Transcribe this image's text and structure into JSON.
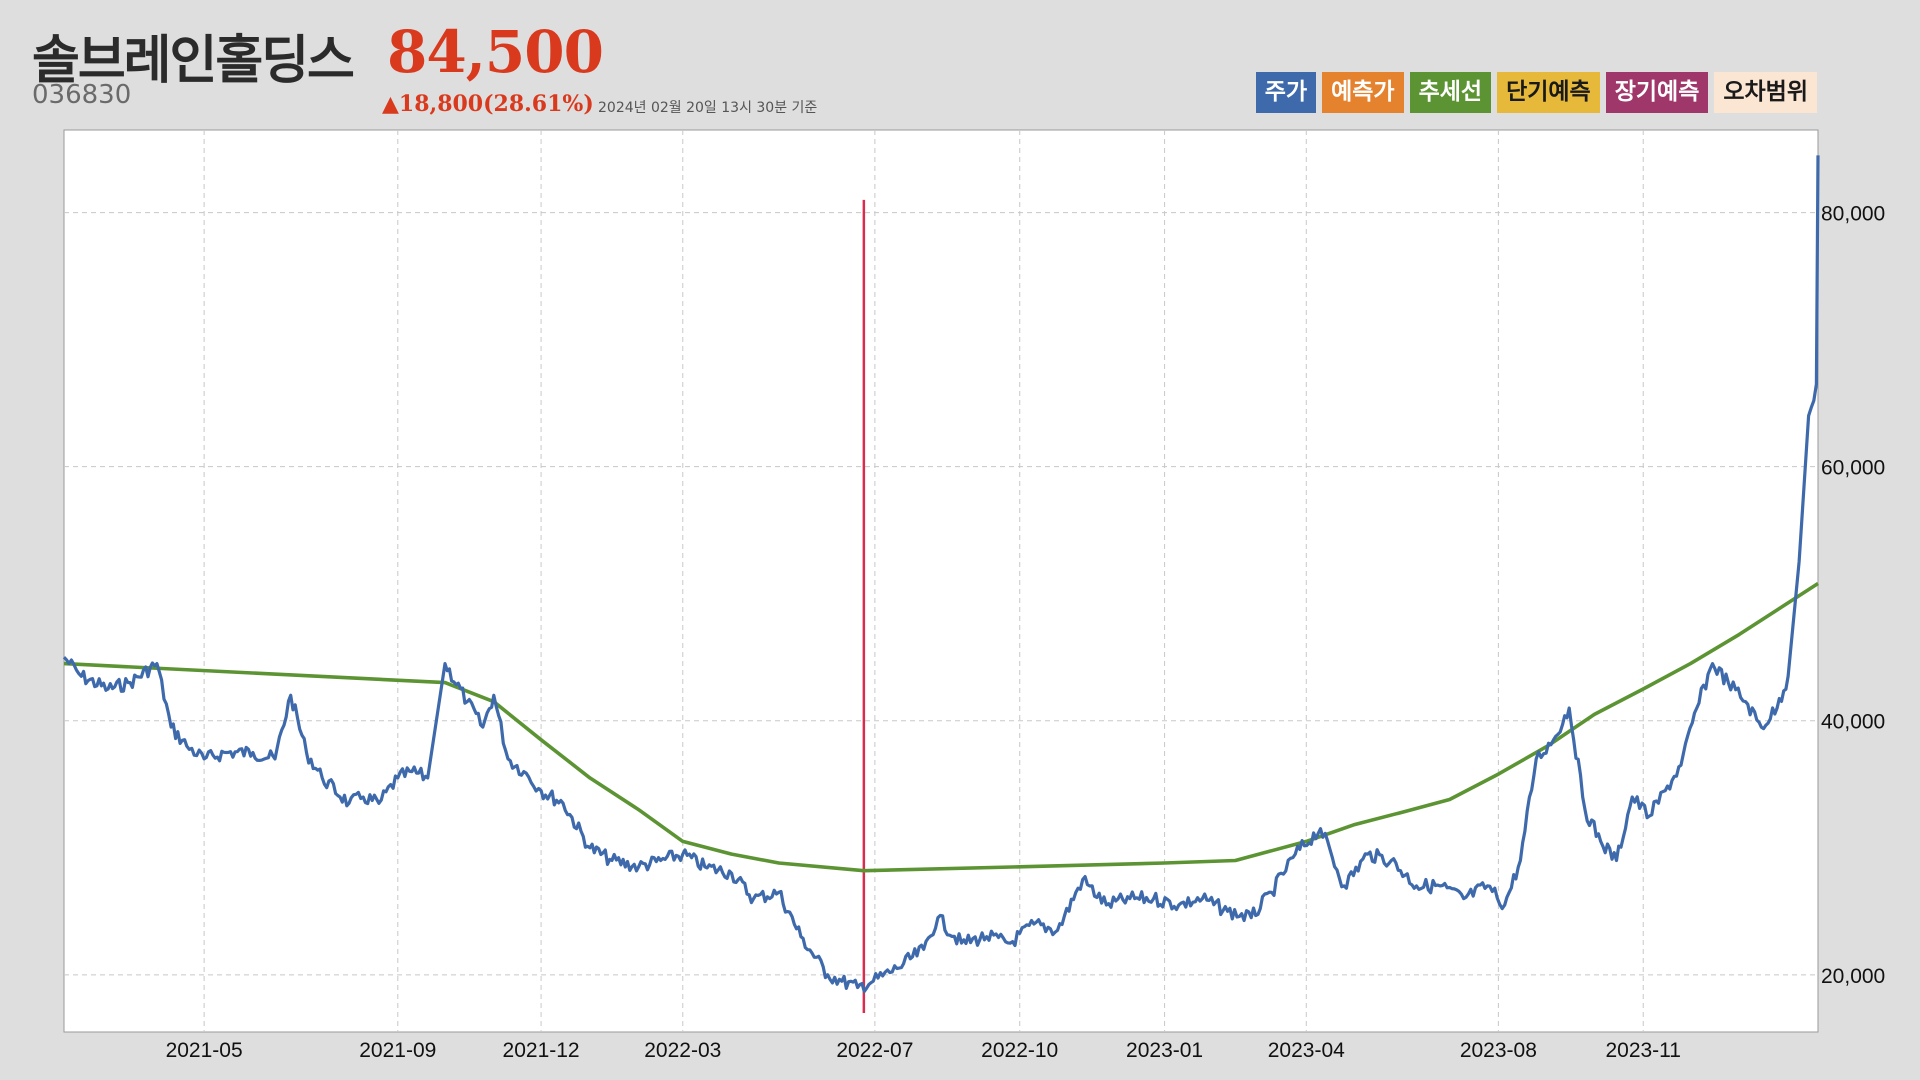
{
  "header": {
    "stock_name": "솔브레인홀딩스",
    "price": "84,500",
    "stock_code": "036830",
    "change": "▲18,800(28.61%)",
    "as_of": "2024년 02월 20일 13시 30분 기준"
  },
  "legend": [
    {
      "label": "주가",
      "color": "#3e6aac",
      "text_color": "#ffffff"
    },
    {
      "label": "예측가",
      "color": "#e5822e",
      "text_color": "#ffffff"
    },
    {
      "label": "추세선",
      "color": "#5c9433",
      "text_color": "#ffffff"
    },
    {
      "label": "단기예측",
      "color": "#e6b93a",
      "text_color": "#1a1a1a"
    },
    {
      "label": "장기예측",
      "color": "#a0376a",
      "text_color": "#ffffff"
    },
    {
      "label": "오차범위",
      "color": "#fbe6d3",
      "text_color": "#1a1a1a"
    }
  ],
  "chart_data": {
    "type": "line",
    "y_axis_position": "right",
    "ylim": [
      15500,
      86500
    ],
    "yticks": [
      20000,
      40000,
      60000,
      80000
    ],
    "ytick_labels": [
      "20,000",
      "40,000",
      "60,000",
      "80,000"
    ],
    "x_ticks": [
      "2021-05",
      "2021-09",
      "2021-12",
      "2022-03",
      "2022-07",
      "2022-10",
      "2023-01",
      "2023-04",
      "2023-08",
      "2023-11"
    ],
    "grid": true,
    "marker_line": {
      "x": "2022-06-24",
      "y_range": [
        17000,
        81000
      ],
      "color": "#d62e4e"
    },
    "series": [
      {
        "name": "주가",
        "color": "#3e6aac",
        "x": [
          "2021-02-01",
          "2021-02-12",
          "2021-03-01",
          "2021-03-15",
          "2021-04-01",
          "2021-04-10",
          "2021-04-20",
          "2021-05-01",
          "2021-05-15",
          "2021-06-01",
          "2021-06-15",
          "2021-06-25",
          "2021-07-05",
          "2021-07-15",
          "2021-08-01",
          "2021-08-10",
          "2021-08-20",
          "2021-09-01",
          "2021-09-10",
          "2021-09-20",
          "2021-10-01",
          "2021-10-15",
          "2021-10-25",
          "2021-11-01",
          "2021-11-10",
          "2021-11-20",
          "2021-12-01",
          "2021-12-15",
          "2022-01-01",
          "2022-01-15",
          "2022-02-01",
          "2022-02-15",
          "2022-03-01",
          "2022-03-15",
          "2022-04-01",
          "2022-04-15",
          "2022-05-01",
          "2022-05-15",
          "2022-06-01",
          "2022-06-10",
          "2022-06-20",
          "2022-06-30",
          "2022-07-15",
          "2022-08-01",
          "2022-08-10",
          "2022-08-25",
          "2022-09-10",
          "2022-09-25",
          "2022-10-10",
          "2022-10-25",
          "2022-11-10",
          "2022-11-25",
          "2022-12-10",
          "2022-12-25",
          "2023-01-10",
          "2023-01-25",
          "2023-02-10",
          "2023-02-25",
          "2023-03-10",
          "2023-03-25",
          "2023-04-10",
          "2023-04-25",
          "2023-05-10",
          "2023-05-25",
          "2023-06-10",
          "2023-06-25",
          "2023-07-10",
          "2023-07-25",
          "2023-08-05",
          "2023-08-15",
          "2023-08-25",
          "2023-09-05",
          "2023-09-15",
          "2023-09-25",
          "2023-10-05",
          "2023-10-15",
          "2023-10-25",
          "2023-11-05",
          "2023-11-15",
          "2023-11-25",
          "2023-12-05",
          "2023-12-15",
          "2023-12-25",
          "2024-01-05",
          "2024-01-15",
          "2024-01-25",
          "2024-02-01",
          "2024-02-08",
          "2024-02-14",
          "2024-02-19",
          "2024-02-20"
        ],
        "y": [
          45000,
          43500,
          42500,
          43000,
          44500,
          39500,
          38000,
          37000,
          37500,
          37500,
          37000,
          42000,
          37500,
          35500,
          33500,
          34000,
          33500,
          35500,
          36000,
          35500,
          44500,
          41500,
          39500,
          42000,
          37000,
          36000,
          34500,
          33500,
          30000,
          29000,
          28500,
          29000,
          29500,
          28500,
          28000,
          26000,
          26500,
          23000,
          20000,
          19500,
          19000,
          19500,
          20500,
          22000,
          24500,
          22500,
          23000,
          22500,
          24000,
          23500,
          27500,
          25500,
          26000,
          26000,
          25500,
          26000,
          25000,
          24500,
          26500,
          29500,
          31500,
          27000,
          29500,
          29000,
          27000,
          27000,
          26000,
          27000,
          25500,
          29000,
          37000,
          38500,
          41000,
          33000,
          30500,
          29000,
          34000,
          32500,
          34500,
          36500,
          41000,
          44500,
          43000,
          41500,
          39500,
          41000,
          43500,
          52500,
          64000,
          66500,
          84500
        ]
      },
      {
        "name": "추세선",
        "color": "#5c9433",
        "x": [
          "2021-02-01",
          "2021-10-01",
          "2021-11-01",
          "2021-12-01",
          "2022-01-01",
          "2022-02-01",
          "2022-03-01",
          "2022-04-01",
          "2022-05-01",
          "2022-06-24",
          "2022-10-01",
          "2023-01-01",
          "2023-02-15",
          "2023-04-01",
          "2023-05-01",
          "2023-06-01",
          "2023-07-01",
          "2023-08-01",
          "2023-09-01",
          "2023-10-01",
          "2023-11-01",
          "2023-12-01",
          "2024-01-01",
          "2024-02-20"
        ],
        "y": [
          44500,
          43000,
          41500,
          38500,
          35500,
          33000,
          30500,
          29500,
          28800,
          28200,
          28500,
          28800,
          29000,
          30500,
          31800,
          32800,
          33800,
          35800,
          38000,
          40500,
          42500,
          44500,
          46800,
          50800
        ]
      }
    ]
  }
}
